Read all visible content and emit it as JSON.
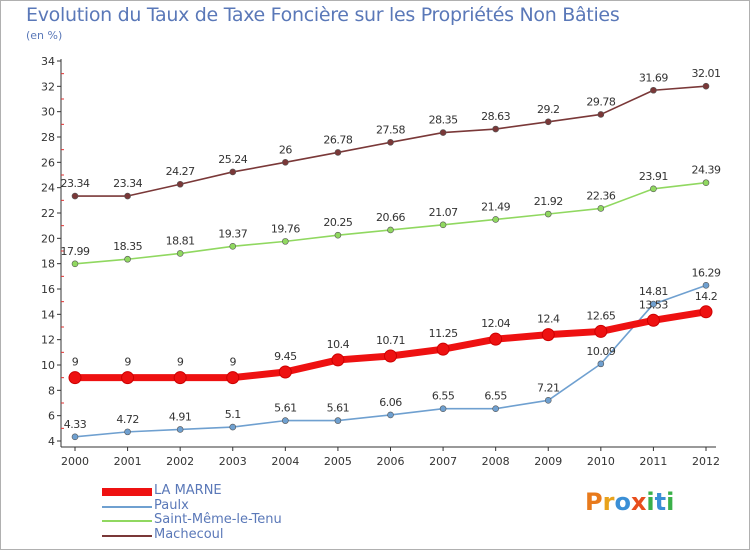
{
  "title": "Evolution du Taux de Taxe Foncière sur les Propriétés Non Bâties",
  "unit_label": "(en %)",
  "logo": {
    "text": "Proxiti",
    "letters": [
      "P",
      "r",
      "o",
      "x",
      "i",
      "t",
      "i"
    ],
    "colors": [
      "#e87a1c",
      "#e8a21c",
      "#3a8fd6",
      "#e84e1c",
      "#3ab04a",
      "#3a8fd6",
      "#3ab04a"
    ]
  },
  "chart_data": {
    "type": "line",
    "title": "Evolution du Taux de Taxe Foncière sur les Propriétés Non Bâties",
    "ylabel": "(en %)",
    "xlabel": "",
    "ylim": [
      4,
      34
    ],
    "yticks": [
      4,
      6,
      8,
      10,
      12,
      14,
      16,
      18,
      20,
      22,
      24,
      26,
      28,
      30,
      32,
      34
    ],
    "x": [
      "2000",
      "2001",
      "2002",
      "2003",
      "2004",
      "2005",
      "2006",
      "2007",
      "2008",
      "2009",
      "2010",
      "2011",
      "2012"
    ],
    "grid": false,
    "legend": "bottom-left",
    "series": [
      {
        "name": "LA MARNE",
        "color": "#ee1111",
        "values": [
          9,
          9,
          9,
          9,
          9.45,
          10.4,
          10.71,
          11.25,
          12.04,
          12.4,
          12.65,
          13.53,
          14.2
        ],
        "labels": [
          "9",
          "9",
          "9",
          "9",
          "9.45",
          "10.4",
          "10.71",
          "11.25",
          "12.04",
          "12.4",
          "12.65",
          "13.53",
          "14.2"
        ]
      },
      {
        "name": "Paulx",
        "color": "#6fa0d0",
        "values": [
          4.33,
          4.72,
          4.91,
          5.1,
          5.61,
          5.61,
          6.06,
          6.55,
          6.55,
          7.21,
          10.09,
          14.81,
          16.29
        ],
        "labels": [
          "4.33",
          "4.72",
          "4.91",
          "5.1",
          "5.61",
          "5.61",
          "6.06",
          "6.55",
          "6.55",
          "7.21",
          "10.09",
          "14.81",
          "16.29"
        ]
      },
      {
        "name": "Saint-Même-le-Tenu",
        "color": "#90d860",
        "values": [
          17.99,
          18.35,
          18.81,
          19.37,
          19.76,
          20.25,
          20.66,
          21.07,
          21.49,
          21.92,
          22.36,
          23.91,
          24.39
        ],
        "labels": [
          "17.99",
          "18.35",
          "18.81",
          "19.37",
          "19.76",
          "20.25",
          "20.66",
          "21.07",
          "21.49",
          "21.92",
          "22.36",
          "23.91",
          "24.39"
        ]
      },
      {
        "name": "Machecoul",
        "color": "#7a3838",
        "values": [
          23.34,
          23.34,
          24.27,
          25.24,
          26,
          26.78,
          27.58,
          28.35,
          28.63,
          29.2,
          29.78,
          31.69,
          32.01
        ],
        "labels": [
          "23.34",
          "23.34",
          "24.27",
          "25.24",
          "26",
          "26.78",
          "27.58",
          "28.35",
          "28.63",
          "29.2",
          "29.78",
          "31.69",
          "32.01"
        ]
      }
    ]
  }
}
